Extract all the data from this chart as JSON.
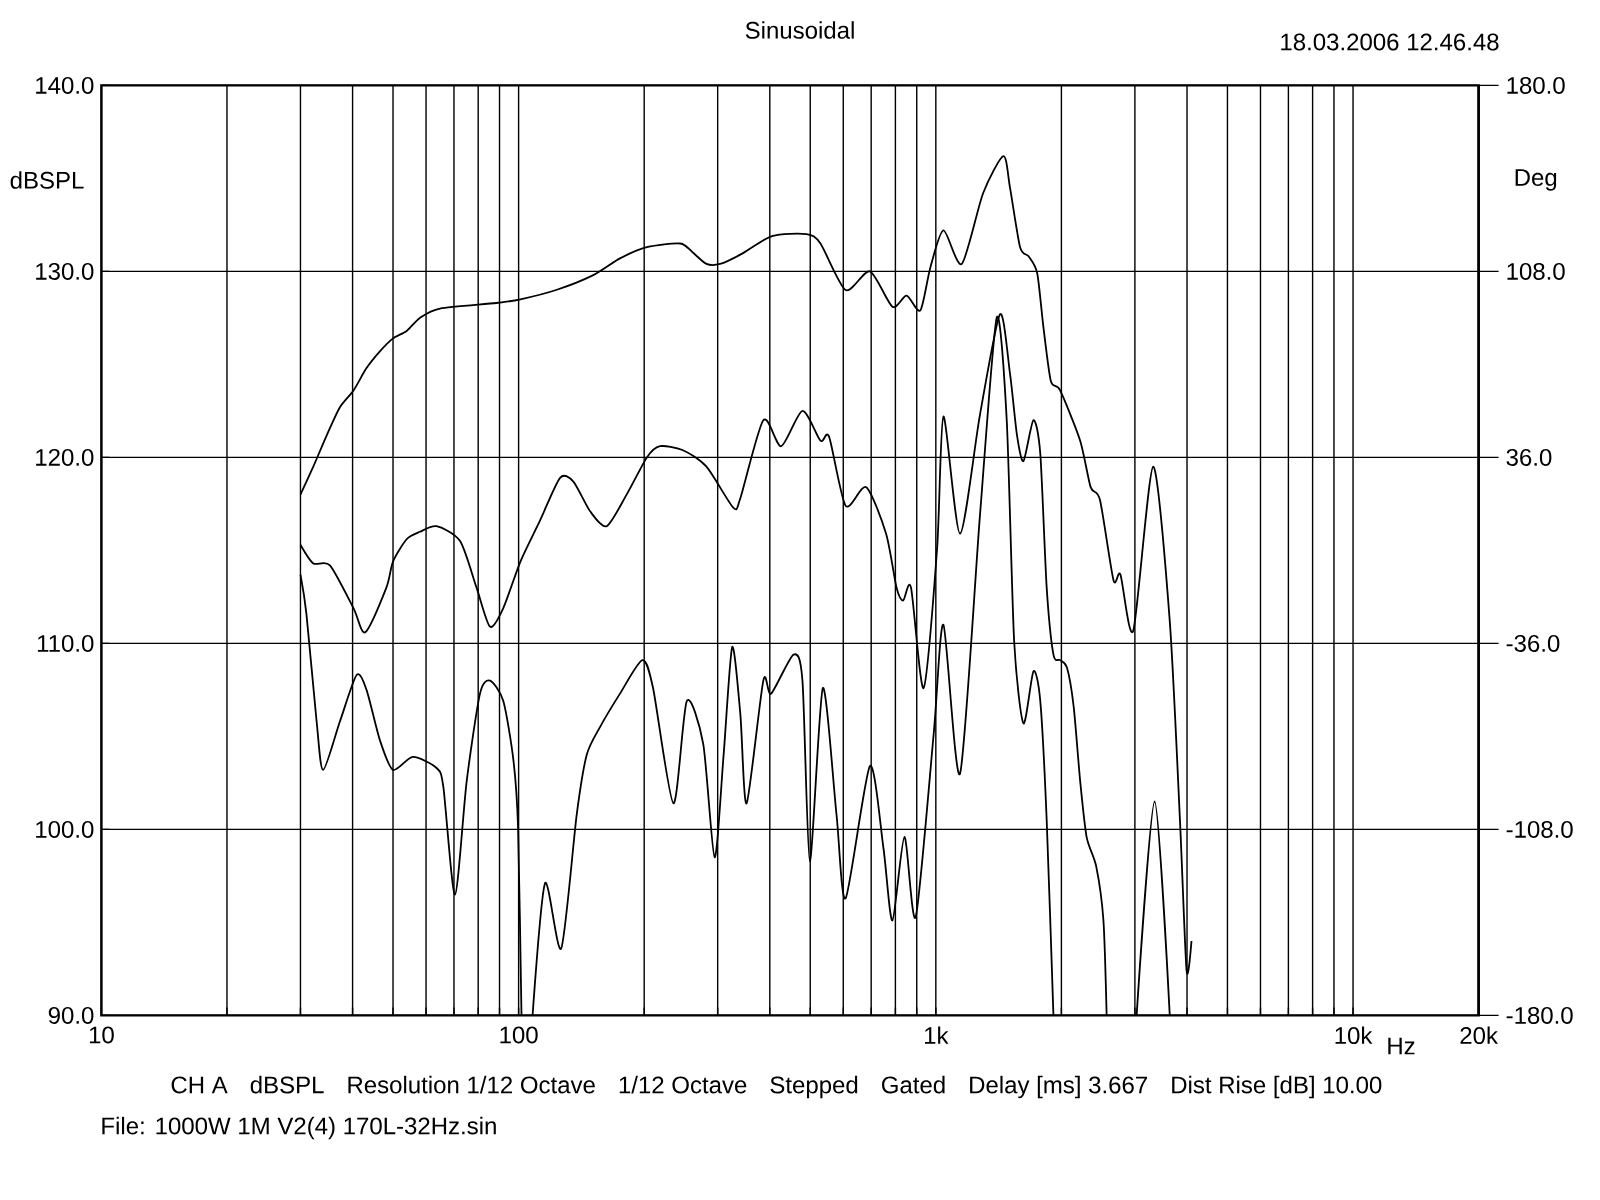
{
  "chart_data": {
    "type": "line",
    "title": "Sinusoidal",
    "xlabel": "Hz",
    "ylabel": "dBSPL",
    "y2label": "Deg",
    "annotations": [
      "18.03.2006 12.46.48",
      "CH A",
      "dBSPL",
      "Resolution 1/12 Octave",
      "1/12 Octave",
      "Stepped",
      "Gated",
      "Delay [ms] 3.667",
      "Dist Rise [dB] 10.00",
      "File: 1000W 1M V2(4) 170L-32Hz.sin"
    ],
    "log": "x",
    "grid": true,
    "xlim": [
      10,
      20000
    ],
    "ylim": [
      90,
      140
    ],
    "y2lim": [
      -180,
      180
    ],
    "xticks": [
      10,
      {
        "value": 20,
        "label": null
      },
      {
        "value": 30,
        "label": null
      },
      {
        "value": 40,
        "label": null
      },
      {
        "value": 50,
        "label": null
      },
      {
        "value": 60,
        "label": null
      },
      {
        "value": 70,
        "label": null
      },
      {
        "value": 80,
        "label": null
      },
      {
        "value": 90,
        "label": null
      },
      100,
      {
        "value": 200,
        "label": null
      },
      {
        "value": 300,
        "label": null
      },
      {
        "value": 400,
        "label": null
      },
      {
        "value": 500,
        "label": null
      },
      {
        "value": 600,
        "label": null
      },
      {
        "value": 700,
        "label": null
      },
      {
        "value": 800,
        "label": null
      },
      {
        "value": 900,
        "label": null
      },
      {
        "value": 1000,
        "label": "1k"
      },
      {
        "value": 2000,
        "label": null
      },
      {
        "value": 3000,
        "label": null
      },
      {
        "value": 4000,
        "label": null
      },
      {
        "value": 5000,
        "label": null
      },
      {
        "value": 6000,
        "label": null
      },
      {
        "value": 7000,
        "label": null
      },
      {
        "value": 8000,
        "label": null
      },
      {
        "value": 9000,
        "label": null
      },
      {
        "value": 10000,
        "label": "10k"
      },
      {
        "value": 20000,
        "label": "20k"
      }
    ],
    "yticks": [
      {
        "value": 90,
        "label": "90.0"
      },
      {
        "value": 100,
        "label": "100.0"
      },
      {
        "value": 110,
        "label": "110.0"
      },
      {
        "value": 120,
        "label": "120.0"
      },
      {
        "value": 130,
        "label": "130.0"
      },
      {
        "value": 140,
        "label": "140.0"
      }
    ],
    "y2ticks": [
      {
        "value": -180,
        "label": "-180.0"
      },
      {
        "value": -108,
        "label": "-108.0"
      },
      {
        "value": -36,
        "label": "-36.0"
      },
      {
        "value": 36,
        "label": "36.0"
      },
      {
        "value": 108,
        "label": "108.0"
      },
      {
        "value": 180,
        "label": "180.0"
      }
    ],
    "series": [
      {
        "color": "#000000",
        "x": [
          30,
          32.2,
          34.7,
          37.3,
          40.2,
          43.2,
          46.5,
          50,
          53.9,
          58,
          64.8,
          88.4,
          101,
          123,
          151,
          175,
          203,
          244,
          262,
          282,
          304,
          340,
          405,
          490,
          529,
          608,
          695,
          787,
          851,
          918,
          970,
          1043,
          1154,
          1298,
          1452,
          1506,
          1592,
          1670,
          1750,
          1811,
          1887,
          1986,
          2218,
          2350,
          2475,
          2666,
          2770,
          2975,
          3319,
          3637,
          3848,
          3991,
          4100
        ],
        "values": [
          118.0,
          119.5,
          121.2,
          122.7,
          123.6,
          124.8,
          125.7,
          126.4,
          126.8,
          127.5,
          128.0,
          128.3,
          128.5,
          129.0,
          129.8,
          130.7,
          131.3,
          131.5,
          131.0,
          130.4,
          130.4,
          130.9,
          131.9,
          132.0,
          131.5,
          129.0,
          130.0,
          128.1,
          128.7,
          127.9,
          130.2,
          132.2,
          130.4,
          134.2,
          136.2,
          134.5,
          131.3,
          130.8,
          129.9,
          127.0,
          124.1,
          123.6,
          120.9,
          118.4,
          117.7,
          113.4,
          113.7,
          110.7,
          119.5,
          111.2,
          100.5,
          92.4,
          94.0
        ]
      },
      {
        "color": "#000000",
        "x": [
          30,
          32.2,
          35.3,
          40.2,
          42.9,
          48.2,
          50,
          53.9,
          58,
          63.6,
          72.4,
          79.3,
          85.4,
          91.9,
          101,
          112.5,
          125.7,
          135.3,
          148.4,
          162.6,
          181.5,
          203,
          218,
          247,
          282,
          327,
          340,
          386,
          426,
          479,
          529,
          555,
          608,
          681,
          760,
          805,
          835,
          872,
          935,
          1007,
          1043,
          1143,
          1276,
          1425,
          1506,
          1565,
          1622,
          1714,
          1780,
          1844,
          1914,
          1986,
          2062,
          2140,
          2218,
          2298,
          2424,
          2522,
          2567,
          2800,
          3029,
          3345,
          3637
        ],
        "values": [
          115.3,
          114.3,
          114.2,
          111.9,
          110.6,
          113.0,
          114.4,
          115.6,
          116.0,
          116.3,
          115.5,
          113.0,
          110.9,
          111.9,
          114.4,
          116.6,
          118.9,
          118.7,
          117.1,
          116.3,
          118.0,
          120.0,
          120.6,
          120.4,
          119.5,
          117.3,
          117.8,
          122.0,
          120.6,
          122.5,
          120.9,
          121.1,
          117.4,
          118.4,
          115.9,
          113.0,
          112.3,
          113.0,
          107.6,
          115.1,
          122.2,
          115.9,
          122.3,
          127.7,
          124.5,
          121.2,
          119.8,
          122.0,
          120.2,
          113.0,
          109.4,
          109.1,
          108.7,
          106.6,
          102.6,
          99.6,
          98.0,
          95.1,
          90.0,
          null,
          90.0,
          101.5,
          90.0
        ]
      },
      {
        "color": "#000000",
        "x": [
          30,
          31.0,
          32.8,
          34.0,
          37.3,
          40.9,
          43.2,
          46.5,
          50,
          55.8,
          63.6,
          66.0,
          70.4,
          75.1,
          80.8,
          85.4,
          91.9,
          97.2,
          99.7,
          101.6,
          104,
          108,
          115.7,
          126.5,
          137.8,
          145.6,
          156.7,
          175,
          198,
          210,
          235,
          253,
          277,
          295,
          310,
          325,
          340,
          352,
          386,
          403,
          456,
          479,
          499,
          536,
          578,
          608,
          695,
          749,
          787,
          841,
          895,
          988,
          1043,
          1143,
          1276,
          1399,
          1479,
          1541,
          1622,
          1714,
          1780,
          1844,
          1914
        ],
        "values": [
          113.7,
          111.6,
          105.8,
          103.2,
          105.8,
          108.3,
          107.5,
          104.8,
          103.2,
          103.9,
          103.3,
          102.3,
          96.5,
          102.6,
          107.3,
          108.0,
          106.9,
          103.7,
          100.1,
          90.0,
          null,
          90.0,
          97.1,
          93.6,
          100.8,
          104.0,
          105.5,
          107.3,
          109.1,
          107.6,
          101.4,
          106.9,
          104.6,
          98.5,
          104.0,
          109.8,
          106.2,
          101.4,
          108.0,
          107.3,
          109.4,
          108.0,
          98.3,
          107.6,
          100.8,
          96.3,
          103.4,
          99.0,
          95.1,
          99.6,
          95.3,
          105.1,
          111.0,
          103.0,
          116.9,
          127.5,
          122.0,
          110.1,
          105.7,
          108.5,
          106.9,
          100.5,
          90.0
        ]
      }
    ]
  }
}
